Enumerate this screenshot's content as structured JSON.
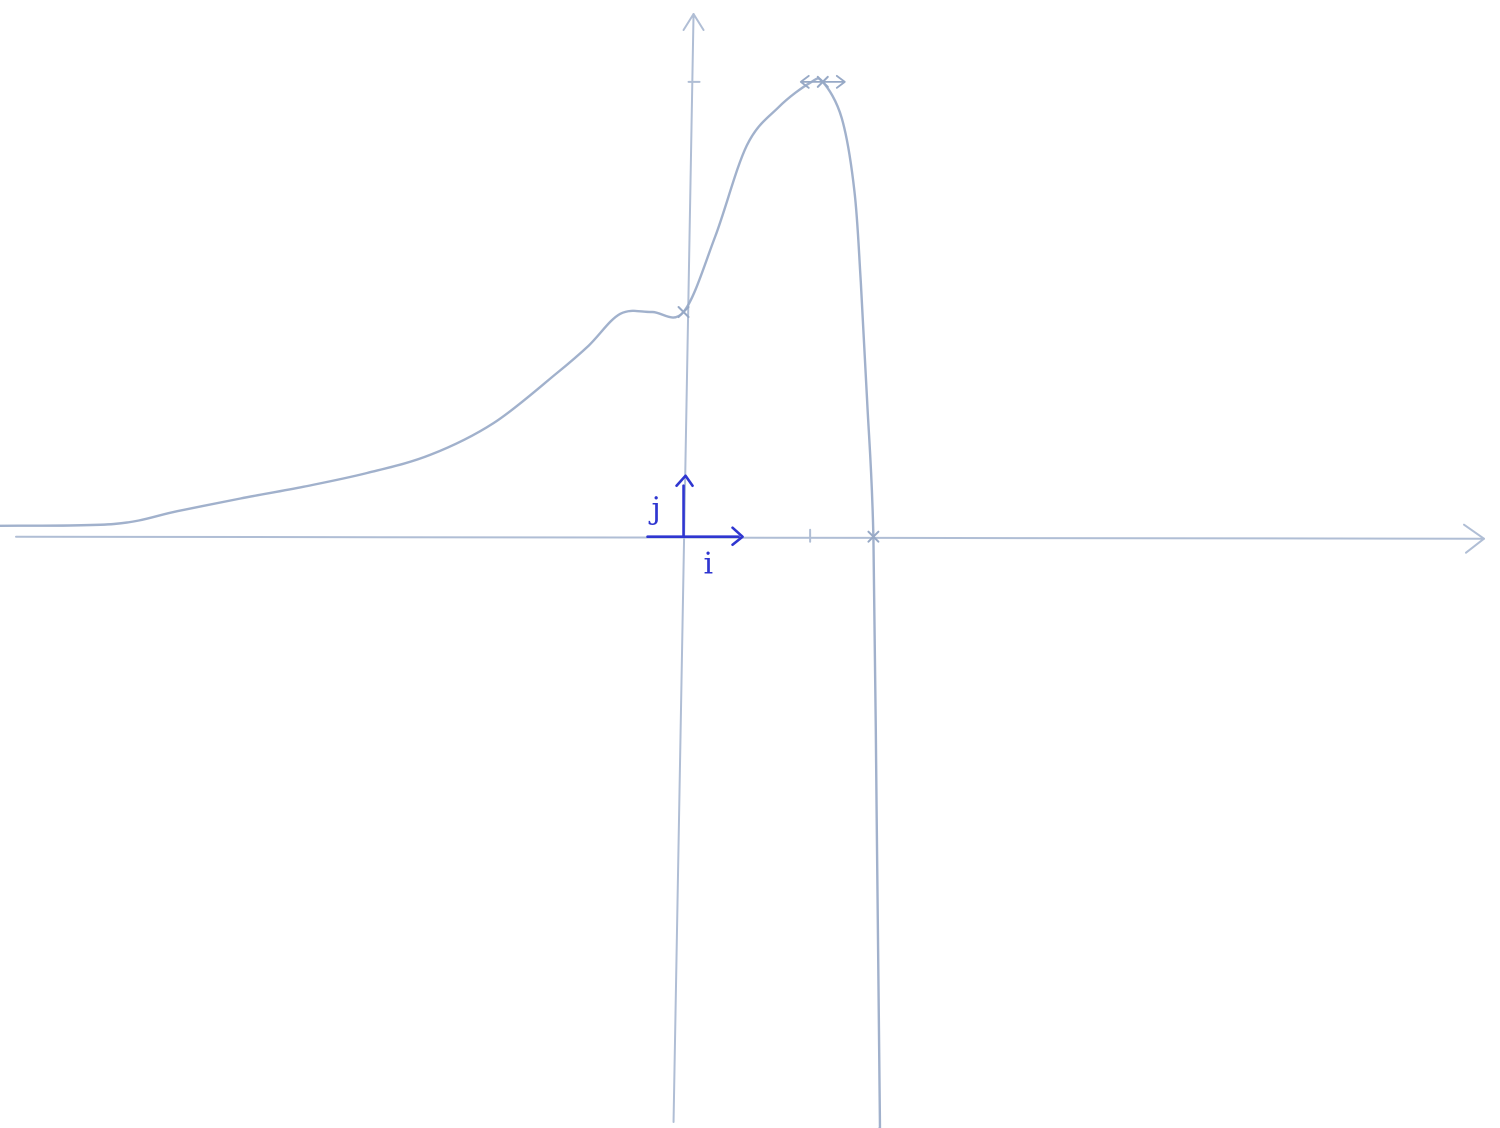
{
  "chart_data": {
    "type": "line",
    "title": "",
    "xlabel": "",
    "ylabel": "",
    "xlim": [
      -10.8,
      12.9
    ],
    "ylim": [
      -6.5,
      5.9
    ],
    "grid": false,
    "legend": "none",
    "unit_vectors": {
      "i": "i",
      "j": "j"
    },
    "x_ticks": [
      2
    ],
    "y_ticks": [
      5
    ],
    "marked_points": [
      {
        "x": 0,
        "y": 2.47
      },
      {
        "x": 3,
        "y": 0
      },
      {
        "x": 2.2,
        "y": 5
      }
    ],
    "horizontal_tangent_at": {
      "x": 2.2,
      "y": 5
    },
    "series": [
      {
        "x": [
          -10.8,
          -9,
          -8,
          -7,
          -6,
          -5,
          -4,
          -3,
          -2,
          -1.5,
          -1,
          -0.5,
          0,
          0.5,
          1,
          1.5,
          2,
          2.2,
          2.5,
          2.7,
          2.8,
          2.9,
          3,
          3.05,
          3.1,
          3.1
        ],
        "y": [
          0.12,
          0.14,
          0.28,
          0.42,
          0.55,
          0.7,
          0.9,
          1.25,
          1.8,
          2.1,
          2.45,
          2.47,
          2.47,
          3.3,
          4.3,
          4.72,
          4.99,
          5.0,
          4.6,
          3.8,
          2.8,
          1.5,
          0.0,
          -3.0,
          -6.2,
          -6.5
        ]
      }
    ],
    "colors": {
      "pencil": "#97a9c6",
      "axis": "#b0bed5",
      "vector": "#2f36d0"
    }
  }
}
